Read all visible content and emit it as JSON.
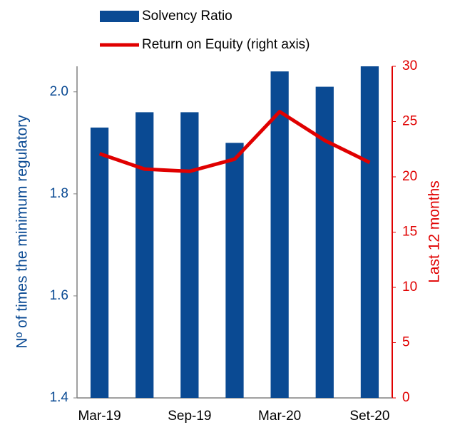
{
  "chart_data": {
    "type": "bar+line",
    "categories": [
      "Mar-19",
      null,
      "Sep-19",
      null,
      "Mar-20",
      null,
      "Set-20"
    ],
    "series": [
      {
        "name": "Solvency Ratio",
        "type": "bar",
        "color": "#0a4a93",
        "values": [
          1.93,
          1.96,
          1.96,
          1.9,
          2.04,
          2.01,
          2.05
        ]
      },
      {
        "name": "Return on Equity (right axis)",
        "type": "line",
        "axis": "y2",
        "color": "#e00000",
        "values": [
          22.1,
          20.7,
          20.5,
          21.6,
          25.9,
          23.3,
          21.3
        ]
      }
    ],
    "ylabel": "Nº of times the minimum regulatory",
    "y2label": "Last 12 months",
    "ylim": [
      1.4,
      2.05
    ],
    "yticks": [
      1.4,
      1.6,
      1.8,
      {
        "value": 2,
        "label": "2.0"
      }
    ],
    "y2lim": [
      0,
      30
    ],
    "y2ticks": [
      0,
      5,
      10,
      15,
      20,
      25,
      30
    ],
    "grid": false,
    "legend": "top"
  }
}
